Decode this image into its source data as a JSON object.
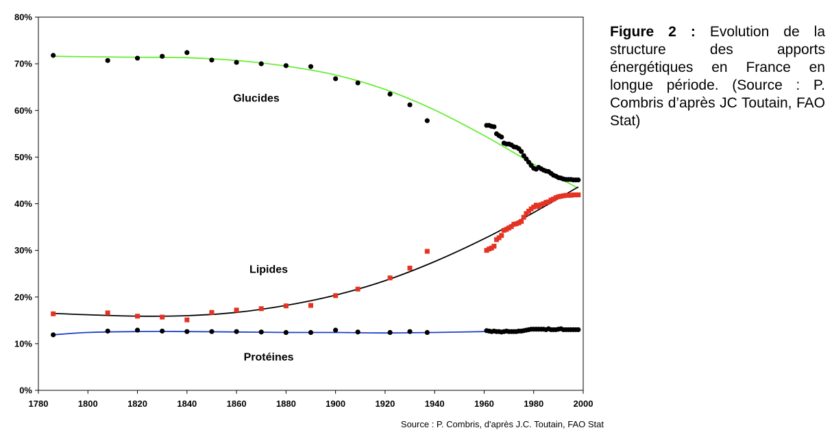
{
  "caption": {
    "figure_label": "Figure 2 :",
    "text": "Evolution de la structure des apports énergétiques en France en longue période. (Source : P. Combris d’après JC Toutain, FAO Stat)"
  },
  "source": "Source : P. Combris, d'après J.C. Toutain, FAO Stat",
  "chart_data": {
    "type": "scatter",
    "title": "",
    "xlabel": "",
    "ylabel": "",
    "xlim": [
      1780,
      2000
    ],
    "ylim": [
      0,
      80
    ],
    "x_ticks": [
      1780,
      1800,
      1820,
      1840,
      1860,
      1880,
      1900,
      1920,
      1940,
      1960,
      1980,
      2000
    ],
    "y_ticks": [
      0,
      10,
      20,
      30,
      40,
      50,
      60,
      70,
      80
    ],
    "y_tick_labels": [
      "0%",
      "10%",
      "20%",
      "30%",
      "40%",
      "50%",
      "60%",
      "70%",
      "80%"
    ],
    "grid": false,
    "legend": "none",
    "series": [
      {
        "name": "Glucides",
        "marker": "circle",
        "marker_color": "#000000",
        "trend_color": "#66ee33",
        "label_at": [
          1868,
          62.6
        ],
        "points": [
          [
            1786,
            71.8
          ],
          [
            1808,
            70.7
          ],
          [
            1820,
            71.2
          ],
          [
            1830,
            71.6
          ],
          [
            1840,
            72.4
          ],
          [
            1850,
            70.8
          ],
          [
            1860,
            70.3
          ],
          [
            1870,
            70.0
          ],
          [
            1880,
            69.6
          ],
          [
            1890,
            69.4
          ],
          [
            1900,
            66.8
          ],
          [
            1909,
            65.9
          ],
          [
            1922,
            63.5
          ],
          [
            1930,
            61.2
          ],
          [
            1937,
            57.8
          ],
          [
            1961,
            56.8
          ],
          [
            1962,
            56.8
          ],
          [
            1963,
            56.6
          ],
          [
            1964,
            56.5
          ],
          [
            1965,
            55.0
          ],
          [
            1966,
            54.6
          ],
          [
            1967,
            54.3
          ],
          [
            1968,
            53.0
          ],
          [
            1969,
            52.8
          ],
          [
            1970,
            52.8
          ],
          [
            1971,
            52.6
          ],
          [
            1972,
            52.2
          ],
          [
            1973,
            52.1
          ],
          [
            1974,
            51.8
          ],
          [
            1975,
            51.2
          ],
          [
            1976,
            50.3
          ],
          [
            1977,
            49.6
          ],
          [
            1978,
            48.9
          ],
          [
            1979,
            48.2
          ],
          [
            1980,
            47.6
          ],
          [
            1981,
            47.4
          ],
          [
            1982,
            47.8
          ],
          [
            1983,
            47.5
          ],
          [
            1984,
            47.2
          ],
          [
            1985,
            47.0
          ],
          [
            1986,
            46.9
          ],
          [
            1987,
            46.5
          ],
          [
            1988,
            46.1
          ],
          [
            1989,
            45.9
          ],
          [
            1990,
            45.6
          ],
          [
            1991,
            45.5
          ],
          [
            1992,
            45.3
          ],
          [
            1993,
            45.2
          ],
          [
            1994,
            45.2
          ],
          [
            1995,
            45.2
          ],
          [
            1996,
            45.1
          ],
          [
            1997,
            45.1
          ],
          [
            1998,
            45.1
          ]
        ],
        "trend": [
          [
            1786,
            71.6
          ],
          [
            1800,
            71.5
          ],
          [
            1820,
            71.4
          ],
          [
            1840,
            71.3
          ],
          [
            1860,
            70.7
          ],
          [
            1880,
            69.5
          ],
          [
            1900,
            67.6
          ],
          [
            1920,
            64.5
          ],
          [
            1940,
            60.1
          ],
          [
            1960,
            54.6
          ],
          [
            1980,
            48.5
          ],
          [
            1998,
            43.3
          ]
        ]
      },
      {
        "name": "Lipides",
        "marker": "square",
        "marker_color": "#e53323",
        "trend_color": "#000000",
        "label_at": [
          1873,
          25.9
        ],
        "points": [
          [
            1786,
            16.4
          ],
          [
            1808,
            16.6
          ],
          [
            1820,
            15.9
          ],
          [
            1830,
            15.7
          ],
          [
            1840,
            15.1
          ],
          [
            1850,
            16.7
          ],
          [
            1860,
            17.2
          ],
          [
            1870,
            17.5
          ],
          [
            1880,
            18.1
          ],
          [
            1890,
            18.2
          ],
          [
            1900,
            20.3
          ],
          [
            1909,
            21.7
          ],
          [
            1922,
            24.1
          ],
          [
            1930,
            26.2
          ],
          [
            1937,
            29.8
          ],
          [
            1961,
            30.0
          ],
          [
            1962,
            30.3
          ],
          [
            1963,
            30.5
          ],
          [
            1964,
            30.9
          ],
          [
            1965,
            32.3
          ],
          [
            1966,
            32.7
          ],
          [
            1967,
            33.2
          ],
          [
            1968,
            34.3
          ],
          [
            1969,
            34.5
          ],
          [
            1970,
            34.8
          ],
          [
            1971,
            35.1
          ],
          [
            1972,
            35.6
          ],
          [
            1973,
            35.7
          ],
          [
            1974,
            35.9
          ],
          [
            1975,
            36.2
          ],
          [
            1976,
            37.1
          ],
          [
            1977,
            37.9
          ],
          [
            1978,
            38.4
          ],
          [
            1979,
            38.9
          ],
          [
            1980,
            39.3
          ],
          [
            1981,
            39.7
          ],
          [
            1982,
            39.4
          ],
          [
            1983,
            39.8
          ],
          [
            1984,
            40.0
          ],
          [
            1985,
            40.3
          ],
          [
            1986,
            40.4
          ],
          [
            1987,
            40.8
          ],
          [
            1988,
            41.0
          ],
          [
            1989,
            41.3
          ],
          [
            1990,
            41.5
          ],
          [
            1991,
            41.6
          ],
          [
            1992,
            41.7
          ],
          [
            1993,
            41.8
          ],
          [
            1994,
            41.8
          ],
          [
            1995,
            41.8
          ],
          [
            1996,
            41.9
          ],
          [
            1997,
            41.9
          ],
          [
            1998,
            41.9
          ]
        ],
        "trend": [
          [
            1786,
            16.5
          ],
          [
            1800,
            16.2
          ],
          [
            1820,
            15.9
          ],
          [
            1840,
            16.0
          ],
          [
            1860,
            16.7
          ],
          [
            1880,
            18.2
          ],
          [
            1900,
            20.4
          ],
          [
            1920,
            23.5
          ],
          [
            1940,
            27.6
          ],
          [
            1960,
            32.5
          ],
          [
            1980,
            38.1
          ],
          [
            1998,
            43.6
          ]
        ]
      },
      {
        "name": "Protéines",
        "marker": "circle",
        "marker_color": "#000000",
        "trend_color": "#1a3fcc",
        "label_at": [
          1873,
          7.1
        ],
        "points": [
          [
            1786,
            11.9
          ],
          [
            1808,
            12.7
          ],
          [
            1820,
            12.9
          ],
          [
            1830,
            12.7
          ],
          [
            1840,
            12.6
          ],
          [
            1850,
            12.6
          ],
          [
            1860,
            12.6
          ],
          [
            1870,
            12.5
          ],
          [
            1880,
            12.4
          ],
          [
            1890,
            12.4
          ],
          [
            1900,
            12.9
          ],
          [
            1909,
            12.5
          ],
          [
            1922,
            12.4
          ],
          [
            1930,
            12.6
          ],
          [
            1937,
            12.4
          ],
          [
            1961,
            12.8
          ],
          [
            1962,
            12.7
          ],
          [
            1963,
            12.6
          ],
          [
            1964,
            12.7
          ],
          [
            1965,
            12.6
          ],
          [
            1966,
            12.6
          ],
          [
            1967,
            12.5
          ],
          [
            1968,
            12.6
          ],
          [
            1969,
            12.7
          ],
          [
            1970,
            12.6
          ],
          [
            1971,
            12.6
          ],
          [
            1972,
            12.6
          ],
          [
            1973,
            12.6
          ],
          [
            1974,
            12.7
          ],
          [
            1975,
            12.7
          ],
          [
            1976,
            12.8
          ],
          [
            1977,
            12.9
          ],
          [
            1978,
            13.0
          ],
          [
            1979,
            13.1
          ],
          [
            1980,
            13.1
          ],
          [
            1981,
            13.1
          ],
          [
            1982,
            13.1
          ],
          [
            1983,
            13.1
          ],
          [
            1984,
            13.1
          ],
          [
            1985,
            13.0
          ],
          [
            1986,
            13.2
          ],
          [
            1987,
            13.0
          ],
          [
            1988,
            13.0
          ],
          [
            1989,
            13.0
          ],
          [
            1990,
            13.1
          ],
          [
            1991,
            13.2
          ],
          [
            1992,
            13.0
          ],
          [
            1993,
            13.0
          ],
          [
            1994,
            13.0
          ],
          [
            1995,
            13.0
          ],
          [
            1996,
            13.0
          ],
          [
            1997,
            13.0
          ],
          [
            1998,
            13.0
          ]
        ],
        "trend": [
          [
            1786,
            11.9
          ],
          [
            1800,
            12.4
          ],
          [
            1820,
            12.6
          ],
          [
            1840,
            12.6
          ],
          [
            1860,
            12.5
          ],
          [
            1880,
            12.4
          ],
          [
            1900,
            12.4
          ],
          [
            1920,
            12.3
          ],
          [
            1940,
            12.4
          ],
          [
            1960,
            12.6
          ],
          [
            1980,
            12.8
          ],
          [
            1998,
            13.0
          ]
        ]
      }
    ]
  }
}
